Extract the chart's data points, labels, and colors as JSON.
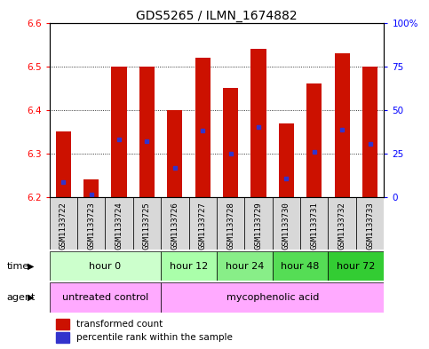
{
  "title": "GDS5265 / ILMN_1674882",
  "samples": [
    "GSM1133722",
    "GSM1133723",
    "GSM1133724",
    "GSM1133725",
    "GSM1133726",
    "GSM1133727",
    "GSM1133728",
    "GSM1133729",
    "GSM1133730",
    "GSM1133731",
    "GSM1133732",
    "GSM1133733"
  ],
  "bar_tops": [
    6.35,
    6.24,
    6.5,
    6.5,
    6.4,
    6.52,
    6.45,
    6.54,
    6.37,
    6.46,
    6.53,
    6.5
  ],
  "bar_base": 6.2,
  "blue_positions": [
    6.235,
    6.207,
    6.333,
    6.328,
    6.268,
    6.352,
    6.3,
    6.36,
    6.243,
    6.303,
    6.355,
    6.323
  ],
  "ylim": [
    6.2,
    6.6
  ],
  "y2lim": [
    0,
    100
  ],
  "yticks": [
    6.2,
    6.3,
    6.4,
    6.5,
    6.6
  ],
  "y2ticks": [
    0,
    25,
    50,
    75,
    100
  ],
  "y2ticklabels": [
    "0",
    "25",
    "50",
    "75",
    "100%"
  ],
  "bar_color": "#cc1100",
  "blue_color": "#3333cc",
  "time_groups": [
    {
      "label": "hour 0",
      "start": 0,
      "end": 4,
      "color": "#ccffcc"
    },
    {
      "label": "hour 12",
      "start": 4,
      "end": 6,
      "color": "#aaffaa"
    },
    {
      "label": "hour 24",
      "start": 6,
      "end": 8,
      "color": "#88ee88"
    },
    {
      "label": "hour 48",
      "start": 8,
      "end": 10,
      "color": "#55dd55"
    },
    {
      "label": "hour 72",
      "start": 10,
      "end": 12,
      "color": "#33cc33"
    }
  ],
  "agent_groups": [
    {
      "label": "untreated control",
      "start": 0,
      "end": 4,
      "color": "#ffaaff"
    },
    {
      "label": "mycophenolic acid",
      "start": 4,
      "end": 12,
      "color": "#ffaaff"
    }
  ],
  "bar_width": 0.55,
  "title_fontsize": 10,
  "tick_fontsize": 7.5,
  "label_fontsize": 8,
  "sample_label_fontsize": 6.5
}
